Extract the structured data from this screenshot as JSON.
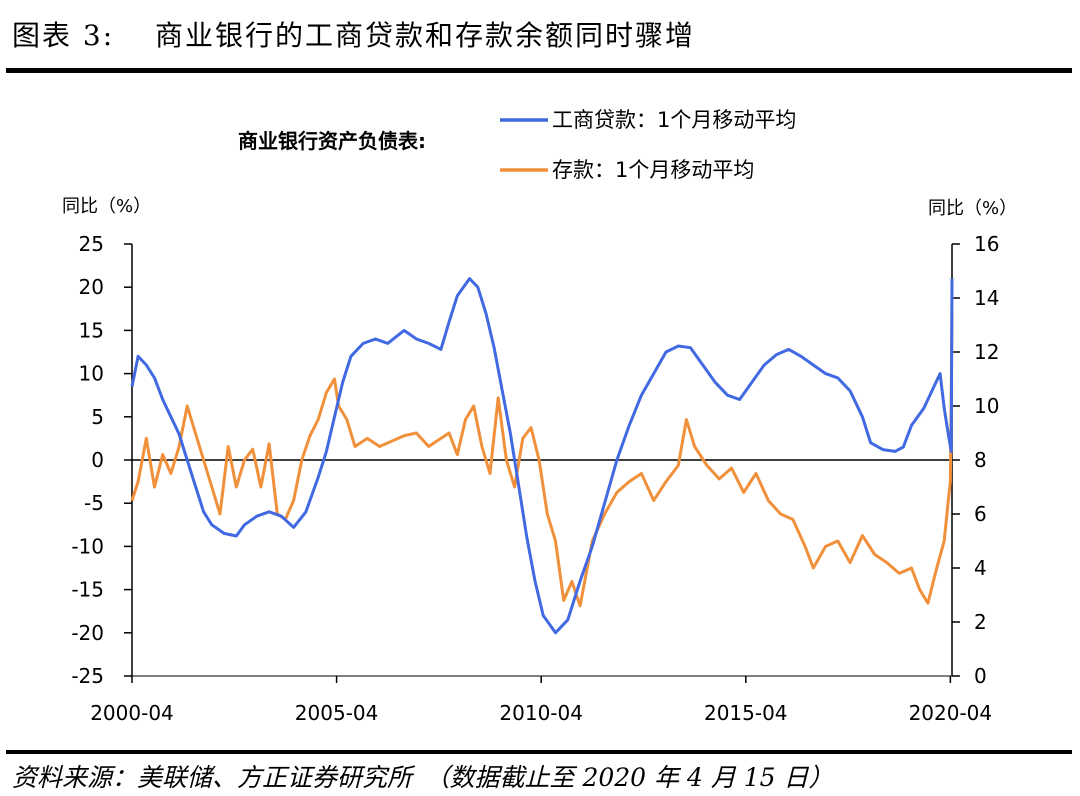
{
  "figure_title": "图表 3:　 商业银行的工商贷款和存款余额同时骤增",
  "source_note": "资料来源：美联储、方正证券研究所　（数据截止至 2020 年 4 月 15 日）",
  "colors": {
    "loans": "#4169E1",
    "deposits": "#F0903A",
    "axis": "#000000"
  },
  "chart_data": {
    "type": "line",
    "title": "商业银行资产负债表:",
    "left_axis_label": "同比（%）",
    "right_axis_label": "同比（%）",
    "ylim_left": [
      -25,
      25
    ],
    "ylim_right": [
      0,
      16
    ],
    "left_ticks": [
      "25",
      "20",
      "15",
      "10",
      "5",
      "0",
      "-5",
      "-10",
      "-15",
      "-20",
      "-25"
    ],
    "right_ticks": [
      "16",
      "14",
      "12",
      "10",
      "8",
      "6",
      "4",
      "2",
      "0"
    ],
    "x_range": [
      2000.25,
      2020.29
    ],
    "x_tick_labels": [
      "2000-04",
      "2005-04",
      "2010-04",
      "2015-04",
      "2020-04"
    ],
    "series": [
      {
        "name": "工商贷款：1个月移动平均",
        "axis": "left",
        "points": [
          [
            2000.25,
            8.5
          ],
          [
            2000.4,
            12
          ],
          [
            2000.6,
            11
          ],
          [
            2000.8,
            9.5
          ],
          [
            2001.0,
            7
          ],
          [
            2001.2,
            5
          ],
          [
            2001.4,
            3
          ],
          [
            2001.6,
            0
          ],
          [
            2001.8,
            -3
          ],
          [
            2002.0,
            -6
          ],
          [
            2002.2,
            -7.5
          ],
          [
            2002.5,
            -8.5
          ],
          [
            2002.8,
            -8.8
          ],
          [
            2003.0,
            -7.5
          ],
          [
            2003.3,
            -6.5
          ],
          [
            2003.6,
            -6
          ],
          [
            2003.9,
            -6.5
          ],
          [
            2004.2,
            -7.8
          ],
          [
            2004.5,
            -6
          ],
          [
            2004.8,
            -2
          ],
          [
            2005.0,
            1
          ],
          [
            2005.2,
            5
          ],
          [
            2005.4,
            9
          ],
          [
            2005.6,
            12
          ],
          [
            2005.9,
            13.5
          ],
          [
            2006.2,
            14
          ],
          [
            2006.5,
            13.5
          ],
          [
            2006.9,
            15
          ],
          [
            2007.2,
            14
          ],
          [
            2007.5,
            13.5
          ],
          [
            2007.8,
            12.8
          ],
          [
            2008.0,
            16
          ],
          [
            2008.2,
            19
          ],
          [
            2008.5,
            21
          ],
          [
            2008.7,
            20
          ],
          [
            2008.9,
            17
          ],
          [
            2009.1,
            13
          ],
          [
            2009.3,
            8
          ],
          [
            2009.5,
            3
          ],
          [
            2009.7,
            -3
          ],
          [
            2009.9,
            -9
          ],
          [
            2010.1,
            -14
          ],
          [
            2010.3,
            -18
          ],
          [
            2010.6,
            -20
          ],
          [
            2010.9,
            -18.5
          ],
          [
            2011.2,
            -14
          ],
          [
            2011.5,
            -10
          ],
          [
            2011.8,
            -5
          ],
          [
            2012.1,
            0
          ],
          [
            2012.4,
            4
          ],
          [
            2012.7,
            7.5
          ],
          [
            2013.0,
            10
          ],
          [
            2013.3,
            12.5
          ],
          [
            2013.6,
            13.2
          ],
          [
            2013.9,
            13
          ],
          [
            2014.2,
            11
          ],
          [
            2014.5,
            9
          ],
          [
            2014.8,
            7.5
          ],
          [
            2015.1,
            7
          ],
          [
            2015.4,
            9
          ],
          [
            2015.7,
            11
          ],
          [
            2016.0,
            12.2
          ],
          [
            2016.3,
            12.8
          ],
          [
            2016.6,
            12
          ],
          [
            2016.9,
            11
          ],
          [
            2017.2,
            10
          ],
          [
            2017.5,
            9.5
          ],
          [
            2017.8,
            8
          ],
          [
            2018.1,
            5
          ],
          [
            2018.3,
            2
          ],
          [
            2018.6,
            1.2
          ],
          [
            2018.9,
            1
          ],
          [
            2019.1,
            1.5
          ],
          [
            2019.3,
            4
          ],
          [
            2019.6,
            6
          ],
          [
            2019.9,
            9
          ],
          [
            2020.0,
            10
          ],
          [
            2020.1,
            6
          ],
          [
            2020.2,
            3
          ],
          [
            2020.27,
            1
          ],
          [
            2020.29,
            21
          ]
        ]
      },
      {
        "name": "存款：1个月移动平均",
        "axis": "right",
        "points": [
          [
            2000.25,
            6.5
          ],
          [
            2000.4,
            7.2
          ],
          [
            2000.6,
            8.8
          ],
          [
            2000.8,
            7
          ],
          [
            2001.0,
            8.2
          ],
          [
            2001.2,
            7.5
          ],
          [
            2001.4,
            8.5
          ],
          [
            2001.6,
            10
          ],
          [
            2001.8,
            9
          ],
          [
            2002.0,
            8
          ],
          [
            2002.2,
            7
          ],
          [
            2002.4,
            6
          ],
          [
            2002.6,
            8.5
          ],
          [
            2002.8,
            7
          ],
          [
            2003.0,
            8
          ],
          [
            2003.2,
            8.4
          ],
          [
            2003.4,
            7
          ],
          [
            2003.6,
            8.6
          ],
          [
            2003.8,
            6
          ],
          [
            2004.0,
            5.8
          ],
          [
            2004.2,
            6.5
          ],
          [
            2004.4,
            8
          ],
          [
            2004.6,
            8.9
          ],
          [
            2004.8,
            9.5
          ],
          [
            2005.0,
            10.5
          ],
          [
            2005.2,
            11
          ],
          [
            2005.3,
            10
          ],
          [
            2005.5,
            9.5
          ],
          [
            2005.7,
            8.5
          ],
          [
            2006.0,
            8.8
          ],
          [
            2006.3,
            8.5
          ],
          [
            2006.6,
            8.7
          ],
          [
            2006.9,
            8.9
          ],
          [
            2007.2,
            9
          ],
          [
            2007.5,
            8.5
          ],
          [
            2007.8,
            8.8
          ],
          [
            2008.0,
            9
          ],
          [
            2008.2,
            8.2
          ],
          [
            2008.4,
            9.5
          ],
          [
            2008.6,
            10
          ],
          [
            2008.8,
            8.5
          ],
          [
            2009.0,
            7.5
          ],
          [
            2009.2,
            10.3
          ],
          [
            2009.4,
            8
          ],
          [
            2009.6,
            7
          ],
          [
            2009.8,
            8.8
          ],
          [
            2010.0,
            9.2
          ],
          [
            2010.2,
            8
          ],
          [
            2010.4,
            6
          ],
          [
            2010.6,
            5
          ],
          [
            2010.8,
            2.8
          ],
          [
            2011.0,
            3.5
          ],
          [
            2011.2,
            2.6
          ],
          [
            2011.5,
            5
          ],
          [
            2011.8,
            6
          ],
          [
            2012.1,
            6.8
          ],
          [
            2012.4,
            7.2
          ],
          [
            2012.7,
            7.5
          ],
          [
            2013.0,
            6.5
          ],
          [
            2013.3,
            7.2
          ],
          [
            2013.6,
            7.8
          ],
          [
            2013.8,
            9.5
          ],
          [
            2014.0,
            8.5
          ],
          [
            2014.3,
            7.8
          ],
          [
            2014.6,
            7.3
          ],
          [
            2014.9,
            7.7
          ],
          [
            2015.2,
            6.8
          ],
          [
            2015.5,
            7.5
          ],
          [
            2015.8,
            6.5
          ],
          [
            2016.1,
            6
          ],
          [
            2016.4,
            5.8
          ],
          [
            2016.7,
            4.8
          ],
          [
            2016.9,
            4
          ],
          [
            2017.2,
            4.8
          ],
          [
            2017.5,
            5
          ],
          [
            2017.8,
            4.2
          ],
          [
            2018.1,
            5.2
          ],
          [
            2018.4,
            4.5
          ],
          [
            2018.7,
            4.2
          ],
          [
            2019.0,
            3.8
          ],
          [
            2019.3,
            4
          ],
          [
            2019.5,
            3.2
          ],
          [
            2019.7,
            2.7
          ],
          [
            2019.9,
            3.9
          ],
          [
            2020.1,
            5
          ],
          [
            2020.2,
            6.5
          ],
          [
            2020.25,
            7.2
          ],
          [
            2020.29,
            13.5
          ]
        ]
      }
    ]
  }
}
